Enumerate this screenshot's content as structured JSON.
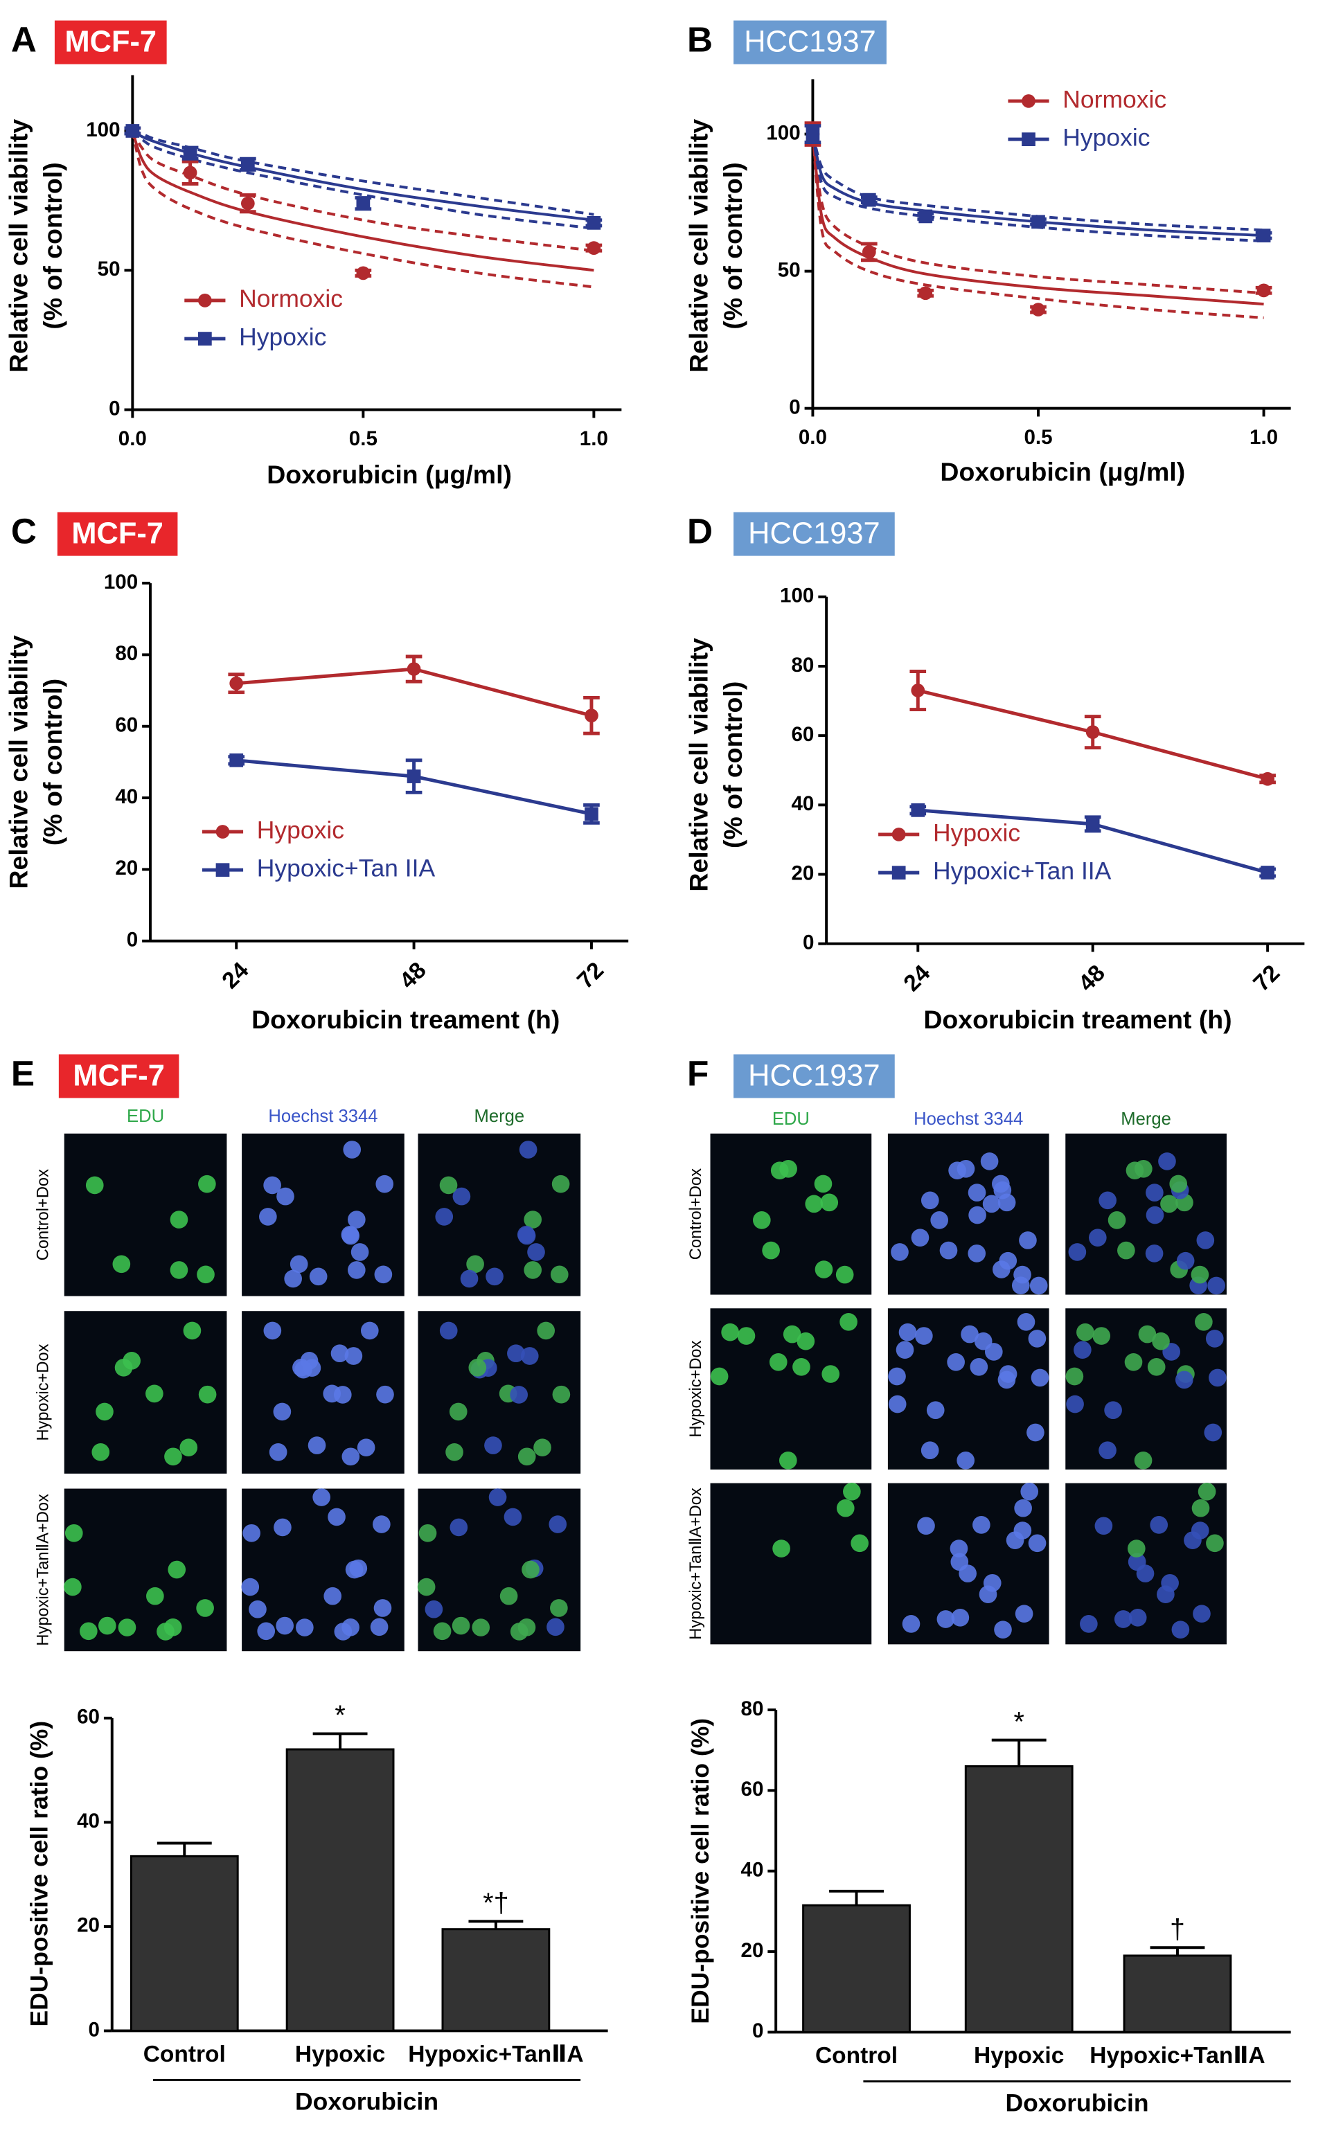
{
  "chart_data": [
    {
      "panel": "A",
      "type": "line",
      "badge": "MCF-7",
      "badge_color": "#e8262b",
      "xlabel": "Doxorubicin (μg/ml)",
      "ylabel": "Relative cell viability",
      "ylabel_sub": "(% of control)",
      "xlim": [
        0,
        1.06
      ],
      "ylim": [
        0,
        120
      ],
      "xticks": [
        {
          "value": 0,
          "label": "0.0"
        },
        {
          "value": 0.5,
          "label": "0.5"
        },
        {
          "value": 1,
          "label": "1.0"
        }
      ],
      "yticks": [
        0,
        50,
        100
      ],
      "legend": "lower left",
      "x": [
        0,
        0.125,
        0.25,
        0.5,
        1
      ],
      "fit_x": [
        0,
        0.02,
        0.05,
        0.125,
        0.25,
        0.5,
        0.75,
        1
      ],
      "series": [
        {
          "name": "Normoxic",
          "color": "#b22a2e",
          "marker": "circle",
          "values": [
            100,
            85,
            74,
            49,
            58
          ],
          "errors": [
            1,
            4,
            3,
            1,
            1
          ],
          "fit": [
            100,
            90,
            84,
            78,
            71,
            62,
            55,
            50
          ],
          "fit_lower": [
            100,
            86,
            79,
            72,
            65,
            56,
            49,
            44
          ],
          "fit_upper": [
            100,
            94,
            89,
            84,
            77,
            68,
            62,
            57
          ]
        },
        {
          "name": "Hypoxic",
          "color": "#2b3a8f",
          "marker": "square",
          "values": [
            100,
            92,
            88,
            74,
            67
          ],
          "errors": [
            1,
            2,
            2,
            2,
            1
          ],
          "fit": [
            100,
            98,
            96,
            92,
            87,
            79,
            73,
            68
          ],
          "fit_lower": [
            100,
            97,
            94,
            90,
            85,
            77,
            70,
            65
          ],
          "fit_upper": [
            100,
            99,
            97,
            94,
            89,
            82,
            76,
            70
          ]
        }
      ]
    },
    {
      "panel": "B",
      "type": "line",
      "badge": "HCC1937",
      "badge_color": "#6b9bd1",
      "xlabel": "Doxorubicin (μg/ml)",
      "ylabel": "Relative cell viability",
      "ylabel_sub": "(% of control)",
      "xlim": [
        0,
        1.06
      ],
      "ylim": [
        0,
        120
      ],
      "xticks": [
        {
          "value": 0,
          "label": "0.0"
        },
        {
          "value": 0.5,
          "label": "0.5"
        },
        {
          "value": 1,
          "label": "1.0"
        }
      ],
      "yticks": [
        0,
        50,
        100
      ],
      "legend": "upper right",
      "x": [
        0,
        0.125,
        0.25,
        0.5,
        1
      ],
      "fit_x": [
        0,
        0.02,
        0.05,
        0.125,
        0.25,
        0.5,
        0.75,
        1
      ],
      "series": [
        {
          "name": "Normoxic",
          "color": "#b22a2e",
          "marker": "circle",
          "values": [
            100,
            57,
            42,
            36,
            43
          ],
          "errors": [
            4,
            3,
            1,
            1,
            1
          ],
          "fit": [
            100,
            70,
            62,
            55,
            49,
            44,
            41,
            38
          ],
          "fit_lower": [
            100,
            65,
            57,
            50,
            45,
            40,
            36,
            33
          ],
          "fit_upper": [
            100,
            75,
            66,
            59,
            53,
            48,
            45,
            42
          ]
        },
        {
          "name": "Hypoxic",
          "color": "#2b3a8f",
          "marker": "square",
          "values": [
            100,
            76,
            70,
            68,
            63
          ],
          "errors": [
            3,
            1,
            1,
            1,
            1
          ],
          "fit": [
            100,
            85,
            80,
            75,
            72,
            68,
            65,
            63
          ],
          "fit_lower": [
            100,
            82,
            77,
            73,
            70,
            66,
            63,
            61
          ],
          "fit_upper": [
            100,
            88,
            83,
            77,
            74,
            70,
            67,
            65
          ]
        }
      ]
    },
    {
      "panel": "C",
      "type": "line",
      "badge": "MCF-7",
      "badge_color": "#e8262b",
      "xlabel": "Doxorubicin treament (h)",
      "ylabel": "Relative cell viability",
      "ylabel_sub": "(% of control)",
      "ylim": [
        0,
        100
      ],
      "yticks": [
        0,
        20,
        40,
        60,
        80,
        100
      ],
      "legend": "lower left",
      "categories": [
        "24",
        "48",
        "72"
      ],
      "series": [
        {
          "name": "Hypoxic",
          "color": "#b22a2e",
          "marker": "circle",
          "values": [
            72,
            76,
            63
          ],
          "errors": [
            2.5,
            3.5,
            5
          ]
        },
        {
          "name": "Hypoxic+Tan IIA",
          "color": "#2b3a8f",
          "marker": "square",
          "values": [
            50.5,
            46,
            35.5
          ],
          "errors": [
            1,
            4.5,
            2.5
          ]
        }
      ]
    },
    {
      "panel": "D",
      "type": "line",
      "badge": "HCC1937",
      "badge_color": "#6b9bd1",
      "xlabel": "Doxorubicin treament (h)",
      "ylabel": "Relative cell viability",
      "ylabel_sub": "(% of control)",
      "ylim": [
        0,
        100
      ],
      "yticks": [
        0,
        20,
        40,
        60,
        80,
        100
      ],
      "legend": "lower left",
      "categories": [
        "24",
        "48",
        "72"
      ],
      "series": [
        {
          "name": "Hypoxic",
          "color": "#b22a2e",
          "marker": "circle",
          "values": [
            73,
            61,
            47.5
          ],
          "errors": [
            5.5,
            4.5,
            1
          ]
        },
        {
          "name": "Hypoxic+Tan IIA",
          "color": "#2b3a8f",
          "marker": "square",
          "values": [
            38.5,
            34.5,
            20.5
          ],
          "errors": [
            1,
            2,
            1
          ]
        }
      ]
    },
    {
      "panel": "E",
      "type": "bar",
      "badge": "MCF-7",
      "badge_color": "#e8262b",
      "color": "#333333",
      "image_grid": {
        "columns": [
          "EDU",
          "Hoechst 3344",
          "Merge"
        ],
        "rows": [
          "Control+Dox",
          "Hypoxic+Dox",
          "Hypoxic+TanⅡA+Dox"
        ]
      },
      "ylabel": "EDU-positive cell ratio (%)",
      "group_label": "Doxorubicin",
      "ylim": [
        0,
        60
      ],
      "yticks": [
        0,
        20,
        40,
        60
      ],
      "categories": [
        "Control",
        "Hypoxic",
        "Hypoxic+TanⅡA"
      ],
      "values": [
        33.5,
        54,
        19.5
      ],
      "errors": [
        2.5,
        3,
        1.5
      ],
      "annotations": [
        null,
        "*",
        "*†"
      ]
    },
    {
      "panel": "F",
      "type": "bar",
      "badge": "HCC1937",
      "badge_color": "#6b9bd1",
      "color": "#333333",
      "image_grid": {
        "columns": [
          "EDU",
          "Hoechst 3344",
          "Merge"
        ],
        "rows": [
          "Control+Dox",
          "Hypoxic+Dox",
          "Hypoxic+TanⅡA+Dox"
        ]
      },
      "ylabel": "EDU-positive cell ratio (%)",
      "group_label": "Doxorubicin",
      "ylim": [
        0,
        80
      ],
      "yticks": [
        0,
        20,
        40,
        60,
        80
      ],
      "categories": [
        "Control",
        "Hypoxic",
        "Hypoxic+TanⅡA"
      ],
      "values": [
        31.5,
        66,
        19
      ],
      "errors": [
        3.5,
        6.5,
        2
      ],
      "annotations": [
        null,
        "*",
        "†"
      ]
    }
  ]
}
